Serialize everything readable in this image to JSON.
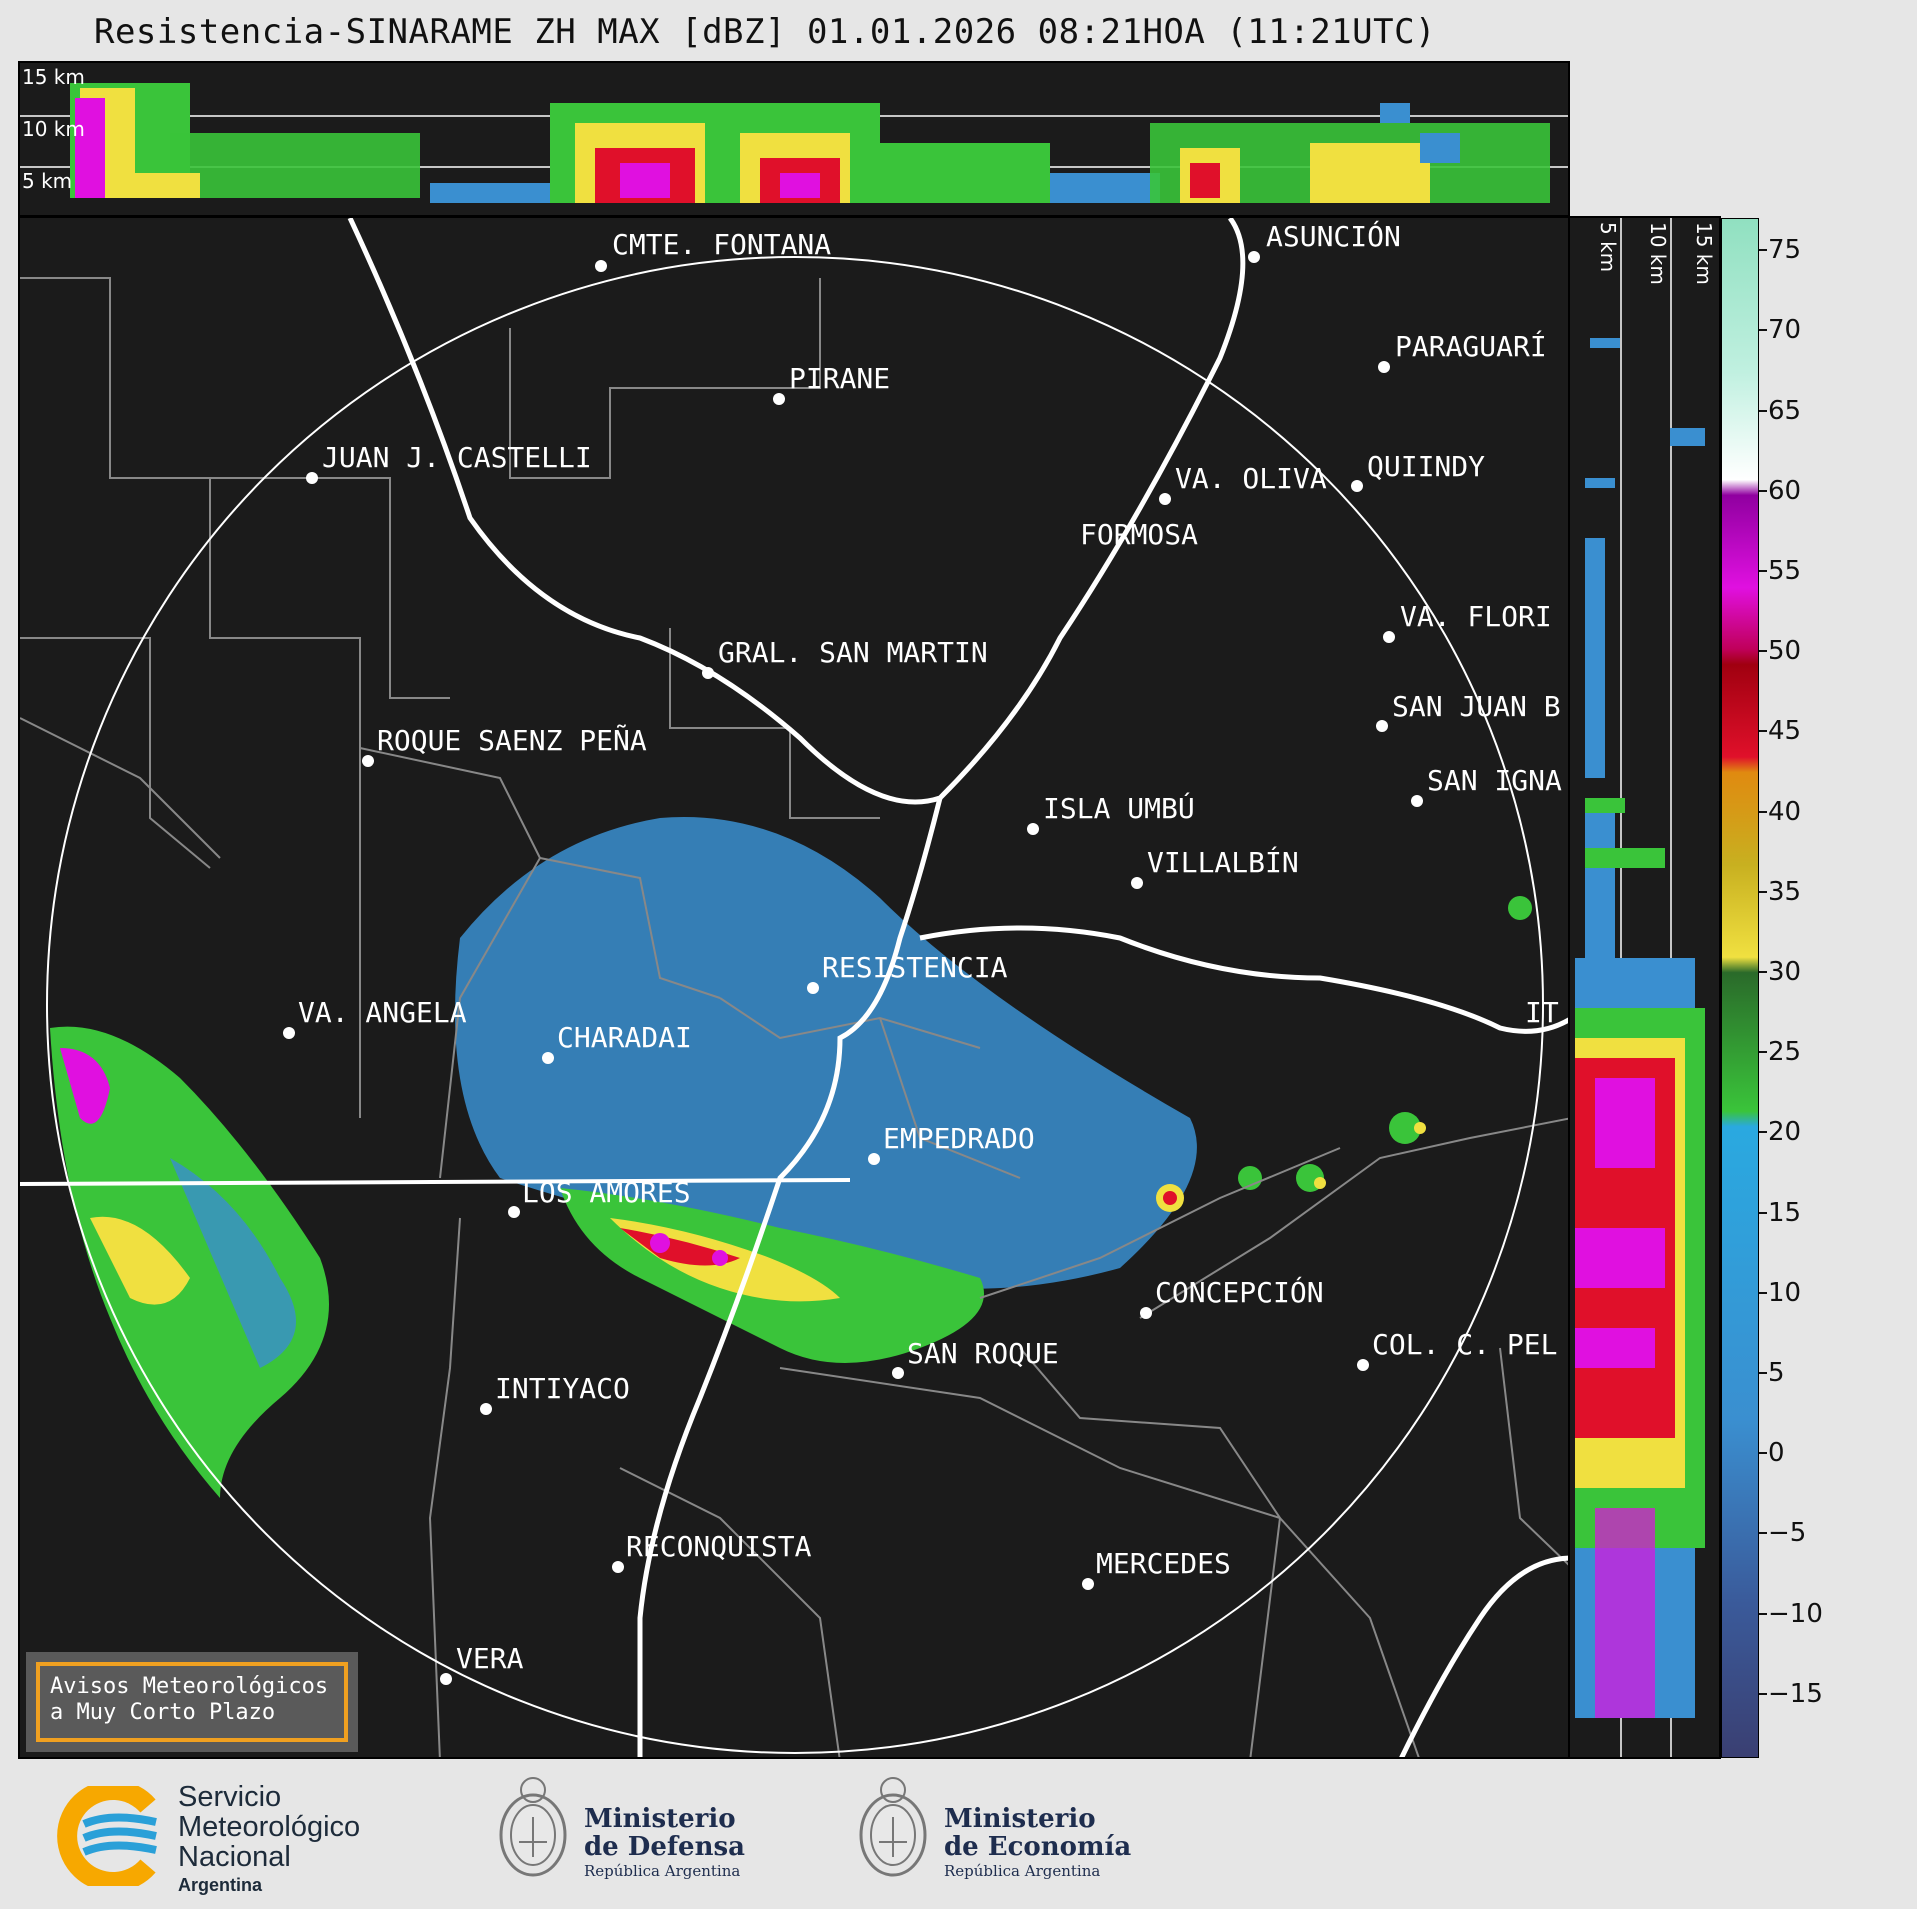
{
  "title": "Resistencia-SINARAME ZH MAX [dBZ] 01.01.2026 08:21HOA (11:21UTC)",
  "top_panel": {
    "altitude_labels": [
      "15 km",
      "10 km",
      "5 km"
    ]
  },
  "side_panel": {
    "altitude_labels": [
      "5 km",
      "10 km",
      "15 km"
    ]
  },
  "colorbar": {
    "unit": "dBZ",
    "ticks": [
      "75",
      "70",
      "65",
      "60",
      "55",
      "50",
      "45",
      "40",
      "35",
      "30",
      "25",
      "20",
      "15",
      "10",
      "5",
      "0",
      "−5",
      "−10",
      "−15"
    ],
    "range": [
      -19,
      77
    ],
    "colors": {
      "low": "#3a3f72",
      "blue": "#3a8fd0",
      "cyan": "#2aa9e0",
      "green": "#3ac43a",
      "dark_green": "#2a7a2a",
      "yellow": "#f0e040",
      "orange": "#e08a10",
      "red": "#e0102a",
      "dark_red": "#a00010",
      "magenta": "#e010e0",
      "purple": "#9000a0",
      "white": "#ffffff",
      "mint": "#90e0c0"
    }
  },
  "cities": [
    {
      "name": "CMTE. FONTANA"
    },
    {
      "name": "ASUNCIÓN"
    },
    {
      "name": "PIRANE"
    },
    {
      "name": "PARAGUARÍ"
    },
    {
      "name": "JUAN J. CASTELLI"
    },
    {
      "name": "VA. OLIVA"
    },
    {
      "name": "QUIINDY"
    },
    {
      "name": "FORMOSA"
    },
    {
      "name": "VA. FLORI"
    },
    {
      "name": "GRAL. SAN MARTIN"
    },
    {
      "name": "SAN JUAN B"
    },
    {
      "name": "ROQUE SAENZ PEÑA"
    },
    {
      "name": "SAN IGNA"
    },
    {
      "name": "ISLA UMBÚ"
    },
    {
      "name": "VILLALBÍN"
    },
    {
      "name": "RESISTENCIA"
    },
    {
      "name": "VA. ANGELA"
    },
    {
      "name": "CHARADAI"
    },
    {
      "name": "IT"
    },
    {
      "name": "EMPEDRADO"
    },
    {
      "name": "LOS AMORES"
    },
    {
      "name": "CONCEPCIÓN"
    },
    {
      "name": "SAN ROQUE"
    },
    {
      "name": "COL. C. PEL"
    },
    {
      "name": "INTIYACO"
    },
    {
      "name": "RECONQUISTA"
    },
    {
      "name": "MERCEDES"
    },
    {
      "name": "VERA"
    }
  ],
  "avisos": {
    "line1": "Avisos Meteorológicos",
    "line2": "a Muy Corto Plazo"
  },
  "footer": {
    "smn_line1": "Servicio",
    "smn_line2": "Meteorológico",
    "smn_line3": "Nacional",
    "smn_country": "Argentina",
    "defensa_line1": "Ministerio",
    "defensa_line2": "de Defensa",
    "defensa_sub": "República Argentina",
    "economia_line1": "Ministerio",
    "economia_line2": "de Economía",
    "economia_sub": "República Argentina"
  }
}
